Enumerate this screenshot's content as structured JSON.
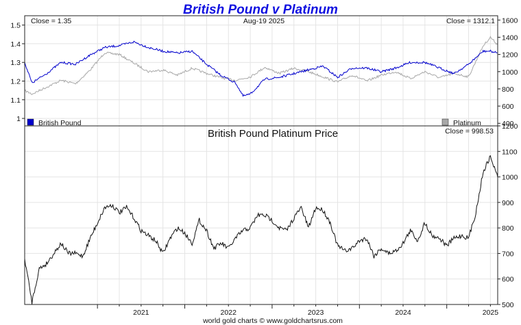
{
  "title": "British Pound v Platinum",
  "footer": "world gold charts © www.goldchartsrus.com",
  "chart_data": [
    {
      "type": "line",
      "panel": "top",
      "date_label": "Aug-19  2025",
      "left_close": "Close = 1.35",
      "right_close": "Close = 1312.1",
      "y_left": {
        "ylim": [
          0.96,
          1.55
        ],
        "ticks": [
          1.0,
          1.1,
          1.2,
          1.3,
          1.4,
          1.5
        ]
      },
      "y_right": {
        "ylim": [
          370,
          1650
        ],
        "ticks": [
          400,
          600,
          800,
          1000,
          1200,
          1400,
          1600
        ]
      },
      "legend": [
        "British Pound",
        "Platinum"
      ],
      "x_start": "2020-03",
      "x_end": "2025-08",
      "series": [
        {
          "name": "British Pound",
          "color": "#0000cc",
          "axis": "left",
          "x": [
            "2020-03",
            "2020-04",
            "2020-06",
            "2020-08",
            "2020-10",
            "2020-12",
            "2021-02",
            "2021-04",
            "2021-06",
            "2021-08",
            "2021-10",
            "2021-12",
            "2022-02",
            "2022-04",
            "2022-06",
            "2022-08",
            "2022-09",
            "2022-10",
            "2022-12",
            "2023-02",
            "2023-04",
            "2023-06",
            "2023-08",
            "2023-10",
            "2023-12",
            "2024-02",
            "2024-04",
            "2024-06",
            "2024-08",
            "2024-10",
            "2024-12",
            "2025-02",
            "2025-04",
            "2025-06",
            "2025-07",
            "2025-08"
          ],
          "values": [
            1.3,
            1.19,
            1.24,
            1.3,
            1.29,
            1.34,
            1.38,
            1.39,
            1.41,
            1.38,
            1.36,
            1.35,
            1.36,
            1.29,
            1.23,
            1.19,
            1.12,
            1.13,
            1.21,
            1.22,
            1.24,
            1.26,
            1.28,
            1.22,
            1.27,
            1.27,
            1.25,
            1.27,
            1.3,
            1.3,
            1.27,
            1.24,
            1.29,
            1.36,
            1.36,
            1.35
          ]
        },
        {
          "name": "Platinum",
          "color": "#a8a8a8",
          "axis": "right",
          "x": [
            "2020-03",
            "2020-04",
            "2020-06",
            "2020-08",
            "2020-10",
            "2020-12",
            "2021-02",
            "2021-04",
            "2021-06",
            "2021-08",
            "2021-10",
            "2021-12",
            "2022-02",
            "2022-04",
            "2022-06",
            "2022-08",
            "2022-10",
            "2022-12",
            "2023-02",
            "2023-04",
            "2023-06",
            "2023-08",
            "2023-10",
            "2023-12",
            "2024-02",
            "2024-04",
            "2024-06",
            "2024-08",
            "2024-10",
            "2024-12",
            "2025-02",
            "2025-04",
            "2025-06",
            "2025-07",
            "2025-08"
          ],
          "values": [
            780,
            740,
            820,
            900,
            860,
            1020,
            1220,
            1200,
            1100,
            1000,
            1020,
            960,
            1040,
            980,
            930,
            900,
            940,
            1050,
            980,
            1040,
            1000,
            940,
            880,
            960,
            890,
            960,
            1000,
            920,
            1000,
            930,
            980,
            940,
            1300,
            1400,
            1312.1
          ]
        }
      ]
    },
    {
      "type": "line",
      "panel": "bottom",
      "title": "British Pound Platinum Price",
      "close_label": "Close = 998.53",
      "y_right": {
        "ylim": [
          500,
          1200
        ],
        "ticks": [
          500,
          600,
          700,
          800,
          900,
          1000,
          1100,
          1200
        ]
      },
      "x_ticks": [
        "2021",
        "2022",
        "2023",
        "2024",
        "2025"
      ],
      "x_start": "2020-03",
      "x_end": "2025-08",
      "series": [
        {
          "color": "#111111",
          "x": [
            "2020-03",
            "2020-04",
            "2020-05",
            "2020-06",
            "2020-07",
            "2020-08",
            "2020-09",
            "2020-10",
            "2020-11",
            "2020-12",
            "2021-01",
            "2021-02",
            "2021-03",
            "2021-04",
            "2021-05",
            "2021-06",
            "2021-07",
            "2021-08",
            "2021-09",
            "2021-10",
            "2021-11",
            "2021-12",
            "2022-01",
            "2022-02",
            "2022-03",
            "2022-04",
            "2022-05",
            "2022-06",
            "2022-07",
            "2022-08",
            "2022-09",
            "2022-10",
            "2022-11",
            "2022-12",
            "2023-01",
            "2023-02",
            "2023-03",
            "2023-04",
            "2023-05",
            "2023-06",
            "2023-07",
            "2023-08",
            "2023-09",
            "2023-10",
            "2023-11",
            "2023-12",
            "2024-01",
            "2024-02",
            "2024-03",
            "2024-04",
            "2024-05",
            "2024-06",
            "2024-07",
            "2024-08",
            "2024-09",
            "2024-10",
            "2024-11",
            "2024-12",
            "2025-01",
            "2025-02",
            "2025-03",
            "2025-04",
            "2025-05",
            "2025-06",
            "2025-07",
            "2025-08"
          ],
          "values": [
            680,
            510,
            640,
            660,
            700,
            740,
            700,
            700,
            690,
            760,
            820,
            880,
            890,
            860,
            880,
            840,
            790,
            770,
            750,
            700,
            760,
            800,
            780,
            740,
            830,
            790,
            720,
            740,
            720,
            760,
            790,
            800,
            850,
            850,
            830,
            800,
            790,
            840,
            880,
            800,
            880,
            870,
            820,
            730,
            710,
            720,
            750,
            760,
            690,
            720,
            700,
            710,
            740,
            790,
            750,
            820,
            770,
            760,
            730,
            760,
            770,
            760,
            860,
            1020,
            1080,
            998.53
          ]
        }
      ]
    }
  ]
}
